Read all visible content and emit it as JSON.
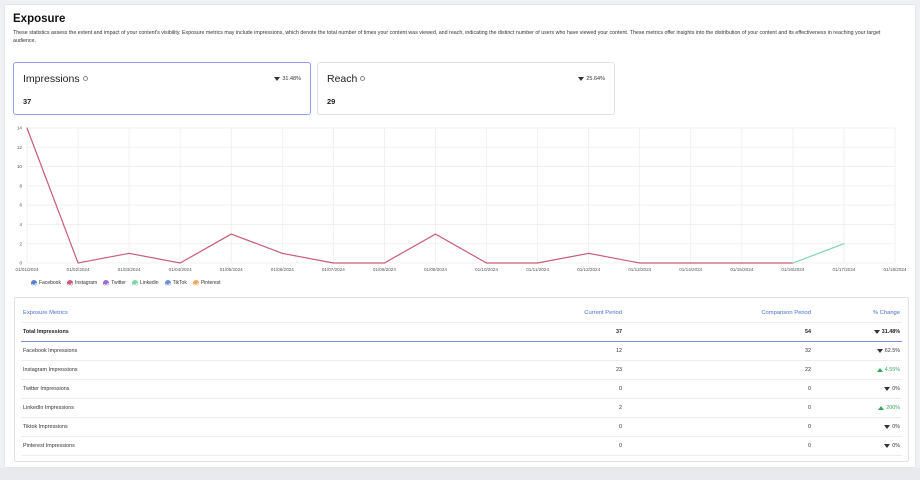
{
  "header": {
    "title": "Exposure",
    "description": "These statistics assess the extent and impact of your content's visibility. Exposure metrics may include impressions, which denote the total number of times your content was viewed, and reach, indicating the distinct number of users who have viewed your content. These metrics offer insights into the distribution of your content and its effectiveness in reaching your target audience."
  },
  "cards": [
    {
      "label": "Impressions",
      "change": "31.48%",
      "value": "37",
      "direction": "down"
    },
    {
      "label": "Reach",
      "change": "25.64%",
      "value": "29",
      "direction": "down"
    }
  ],
  "chart_data": {
    "type": "line",
    "x": [
      "01/01/2024",
      "01/02/2024",
      "01/03/2024",
      "01/04/2024",
      "01/05/2024",
      "01/06/2024",
      "01/07/2024",
      "01/08/2024",
      "01/09/2024",
      "01/10/2024",
      "01/11/2024",
      "01/12/2024",
      "01/13/2024",
      "01/14/2024",
      "01/15/2024",
      "01/16/2024",
      "01/17/2024",
      "01/18/2024"
    ],
    "y_ticks": [
      "0",
      "2",
      "4",
      "6",
      "8",
      "10",
      "12",
      "14"
    ],
    "ylim": [
      0,
      14
    ],
    "grid": true,
    "series": [
      {
        "name": "Instagram",
        "color": "#c95c78",
        "values": [
          14,
          0,
          1,
          0,
          3,
          1,
          0,
          0,
          3,
          0,
          0,
          1,
          0,
          0,
          0,
          0,
          null,
          null
        ]
      },
      {
        "name": "Linkedin",
        "color": "#7ed6a7",
        "values": [
          null,
          null,
          null,
          null,
          null,
          null,
          null,
          null,
          null,
          null,
          null,
          null,
          null,
          null,
          null,
          0,
          2,
          null
        ]
      }
    ]
  },
  "legend": [
    {
      "label": "Facebook",
      "color": "#5b7fd6",
      "icon": "check-circle-icon"
    },
    {
      "label": "Instagram",
      "color": "#c95c78",
      "icon": "check-circle-icon"
    },
    {
      "label": "Twitter",
      "color": "#9b6ad3",
      "icon": "check-circle-icon"
    },
    {
      "label": "Linkedin",
      "color": "#7ed6a7",
      "icon": "check-circle-icon"
    },
    {
      "label": "TikTok",
      "color": "#6e8fdc",
      "icon": "check-circle-icon"
    },
    {
      "label": "Pinterest",
      "color": "#f0a85a",
      "icon": "check-circle-icon"
    }
  ],
  "table": {
    "headers": [
      "Exposure Metrics",
      "Current Period",
      "Comparison Period",
      "% Change"
    ],
    "rows": [
      {
        "name": "Total Impressions",
        "current": "37",
        "comparison": "54",
        "change": "31.48%",
        "direction": "down"
      },
      {
        "name": "Facebook Impressions",
        "current": "12",
        "comparison": "32",
        "change": "62.5%",
        "direction": "down"
      },
      {
        "name": "Instagram Impressions",
        "current": "23",
        "comparison": "22",
        "change": "4.55%",
        "direction": "up"
      },
      {
        "name": "Twitter Impressions",
        "current": "0",
        "comparison": "0",
        "change": "0%",
        "direction": "down"
      },
      {
        "name": "LinkedIn Impressions",
        "current": "2",
        "comparison": "0",
        "change": "200%",
        "direction": "up"
      },
      {
        "name": "Tiktok Impressions",
        "current": "0",
        "comparison": "0",
        "change": "0%",
        "direction": "down"
      },
      {
        "name": "Pinterest Impressions",
        "current": "0",
        "comparison": "0",
        "change": "0%",
        "direction": "down"
      }
    ]
  }
}
